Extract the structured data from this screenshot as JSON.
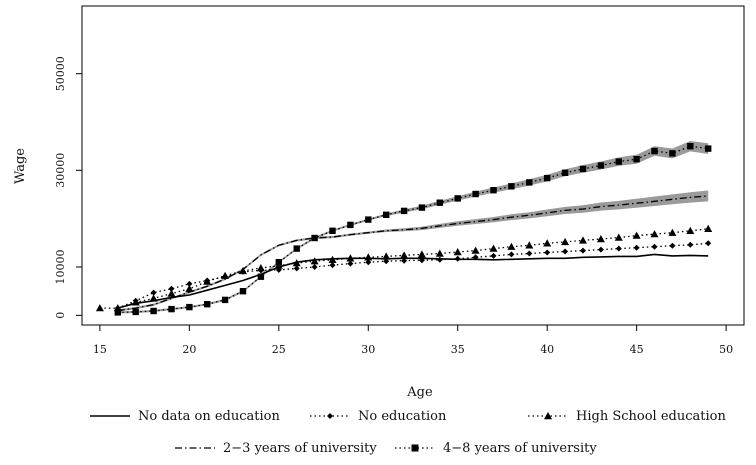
{
  "chart_data": {
    "type": "line",
    "xlabel": "Age",
    "ylabel": "Wage",
    "xlim": [
      14,
      51
    ],
    "ylim": [
      -2000,
      64000
    ],
    "xticks": [
      15,
      20,
      25,
      30,
      35,
      40,
      45,
      50
    ],
    "yticks": [
      0,
      10000,
      30000,
      50000
    ],
    "grid": false,
    "legend_position": "bottom",
    "series": [
      {
        "name": "No data on education",
        "style": "solid",
        "marker": "none",
        "x": [
          16,
          17,
          18,
          19,
          20,
          21,
          22,
          23,
          24,
          25,
          26,
          27,
          28,
          29,
          30,
          31,
          32,
          33,
          34,
          35,
          36,
          37,
          38,
          39,
          40,
          41,
          42,
          43,
          44,
          45,
          46,
          47,
          48,
          49
        ],
        "y": [
          1500,
          2500,
          3000,
          3700,
          4200,
          5200,
          6200,
          7200,
          8500,
          10000,
          11000,
          11500,
          11700,
          11800,
          11800,
          11700,
          11800,
          11800,
          11700,
          11600,
          11600,
          11500,
          11600,
          11700,
          11800,
          11800,
          12000,
          12100,
          12200,
          12200,
          12600,
          12300,
          12400,
          12300
        ]
      },
      {
        "name": "No education",
        "style": "dotted",
        "marker": "diamond",
        "x": [
          16,
          17,
          18,
          19,
          20,
          21,
          22,
          23,
          24,
          25,
          26,
          27,
          28,
          29,
          30,
          31,
          32,
          33,
          34,
          35,
          36,
          37,
          38,
          39,
          40,
          41,
          42,
          43,
          44,
          45,
          46,
          47,
          48,
          49
        ],
        "y": [
          1500,
          3000,
          4700,
          5500,
          6500,
          7200,
          8000,
          9000,
          9300,
          9400,
          9700,
          10000,
          10400,
          10700,
          11000,
          11200,
          11300,
          11400,
          11500,
          11700,
          12000,
          12300,
          12600,
          12800,
          13000,
          13200,
          13400,
          13600,
          13800,
          14000,
          14200,
          14400,
          14600,
          14900
        ]
      },
      {
        "name": "High School education",
        "style": "dotted",
        "marker": "triangle",
        "x": [
          15,
          16,
          17,
          18,
          19,
          20,
          21,
          22,
          23,
          24,
          25,
          26,
          27,
          28,
          29,
          30,
          31,
          32,
          33,
          34,
          35,
          36,
          37,
          38,
          39,
          40,
          41,
          42,
          43,
          44,
          45,
          46,
          47,
          48,
          49
        ],
        "y": [
          1500,
          1500,
          2700,
          3500,
          4500,
          5500,
          7000,
          8200,
          9200,
          9800,
          10300,
          10800,
          11200,
          11500,
          11800,
          12000,
          12200,
          12400,
          12600,
          12800,
          13100,
          13400,
          13800,
          14200,
          14500,
          14900,
          15200,
          15500,
          15800,
          16100,
          16500,
          16800,
          17100,
          17500,
          17900
        ]
      },
      {
        "name": "2−3 years of university",
        "style": "dashdot",
        "marker": "none",
        "x": [
          16,
          17,
          18,
          19,
          20,
          21,
          22,
          23,
          24,
          25,
          26,
          27,
          28,
          29,
          30,
          31,
          32,
          33,
          34,
          35,
          36,
          37,
          38,
          39,
          40,
          41,
          42,
          43,
          44,
          45,
          46,
          47,
          48,
          49
        ],
        "y": [
          1000,
          1500,
          2200,
          3500,
          4800,
          6000,
          7500,
          9500,
          12500,
          14500,
          15500,
          16000,
          16200,
          16700,
          17100,
          17500,
          17700,
          18000,
          18500,
          19000,
          19400,
          19800,
          20300,
          20700,
          21200,
          21700,
          22000,
          22500,
          22800,
          23200,
          23600,
          24000,
          24400,
          24700
        ]
      },
      {
        "name": "4−8 years of university",
        "style": "dotted",
        "marker": "square",
        "x": [
          16,
          17,
          18,
          19,
          20,
          21,
          22,
          23,
          24,
          25,
          26,
          27,
          28,
          29,
          30,
          31,
          32,
          33,
          34,
          35,
          36,
          37,
          38,
          39,
          40,
          41,
          42,
          43,
          44,
          45,
          46,
          47,
          48,
          49
        ],
        "y": [
          600,
          700,
          900,
          1300,
          1700,
          2300,
          3200,
          5000,
          8000,
          11000,
          13800,
          16000,
          17500,
          18700,
          19800,
          20800,
          21600,
          22300,
          23300,
          24200,
          25100,
          25900,
          26700,
          27500,
          28400,
          29500,
          30300,
          31000,
          31800,
          32300,
          34000,
          33500,
          35000,
          34500
        ]
      }
    ]
  }
}
